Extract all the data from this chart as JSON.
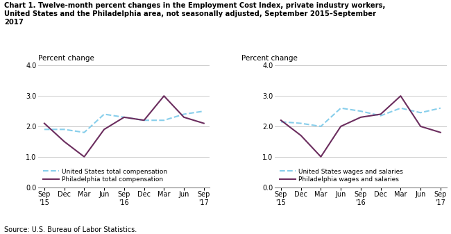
{
  "title": "Chart 1. Twelve-month percent changes in the Employment Cost Index, private industry workers,\nUnited States and the Philadelphia area, not seasonally adjusted, September 2015–September\n2017",
  "source": "Source: U.S. Bureau of Labor Statistics.",
  "ylabel": "Percent change",
  "x_labels": [
    "Sep\n'15",
    "Dec",
    "Mar",
    "Jun",
    "Sep\n'16",
    "Dec",
    "Mar",
    "Jun",
    "Sep\n'17"
  ],
  "chart1": {
    "us_label": "United States total compensation",
    "philly_label": "Philadelphia total compensation",
    "us_values": [
      1.9,
      1.9,
      1.8,
      2.4,
      2.3,
      2.2,
      2.2,
      2.4,
      2.5
    ],
    "philly_values": [
      2.1,
      1.5,
      1.0,
      1.9,
      2.3,
      2.2,
      3.0,
      2.3,
      2.1
    ]
  },
  "chart2": {
    "us_label": "United States wages and salaries",
    "philly_label": "Philadelphia wages and salaries",
    "us_values": [
      2.15,
      2.1,
      2.0,
      2.6,
      2.5,
      2.35,
      2.6,
      2.45,
      2.6
    ],
    "philly_values": [
      2.2,
      1.7,
      1.0,
      2.0,
      2.3,
      2.4,
      3.0,
      2.0,
      1.8
    ]
  },
  "us_color": "#87CEEB",
  "philly_color": "#6B2D5E",
  "ylim": [
    0.0,
    4.0
  ],
  "yticks": [
    0.0,
    1.0,
    2.0,
    3.0,
    4.0
  ],
  "background_color": "#ffffff",
  "plot_bg_color": "#ffffff"
}
